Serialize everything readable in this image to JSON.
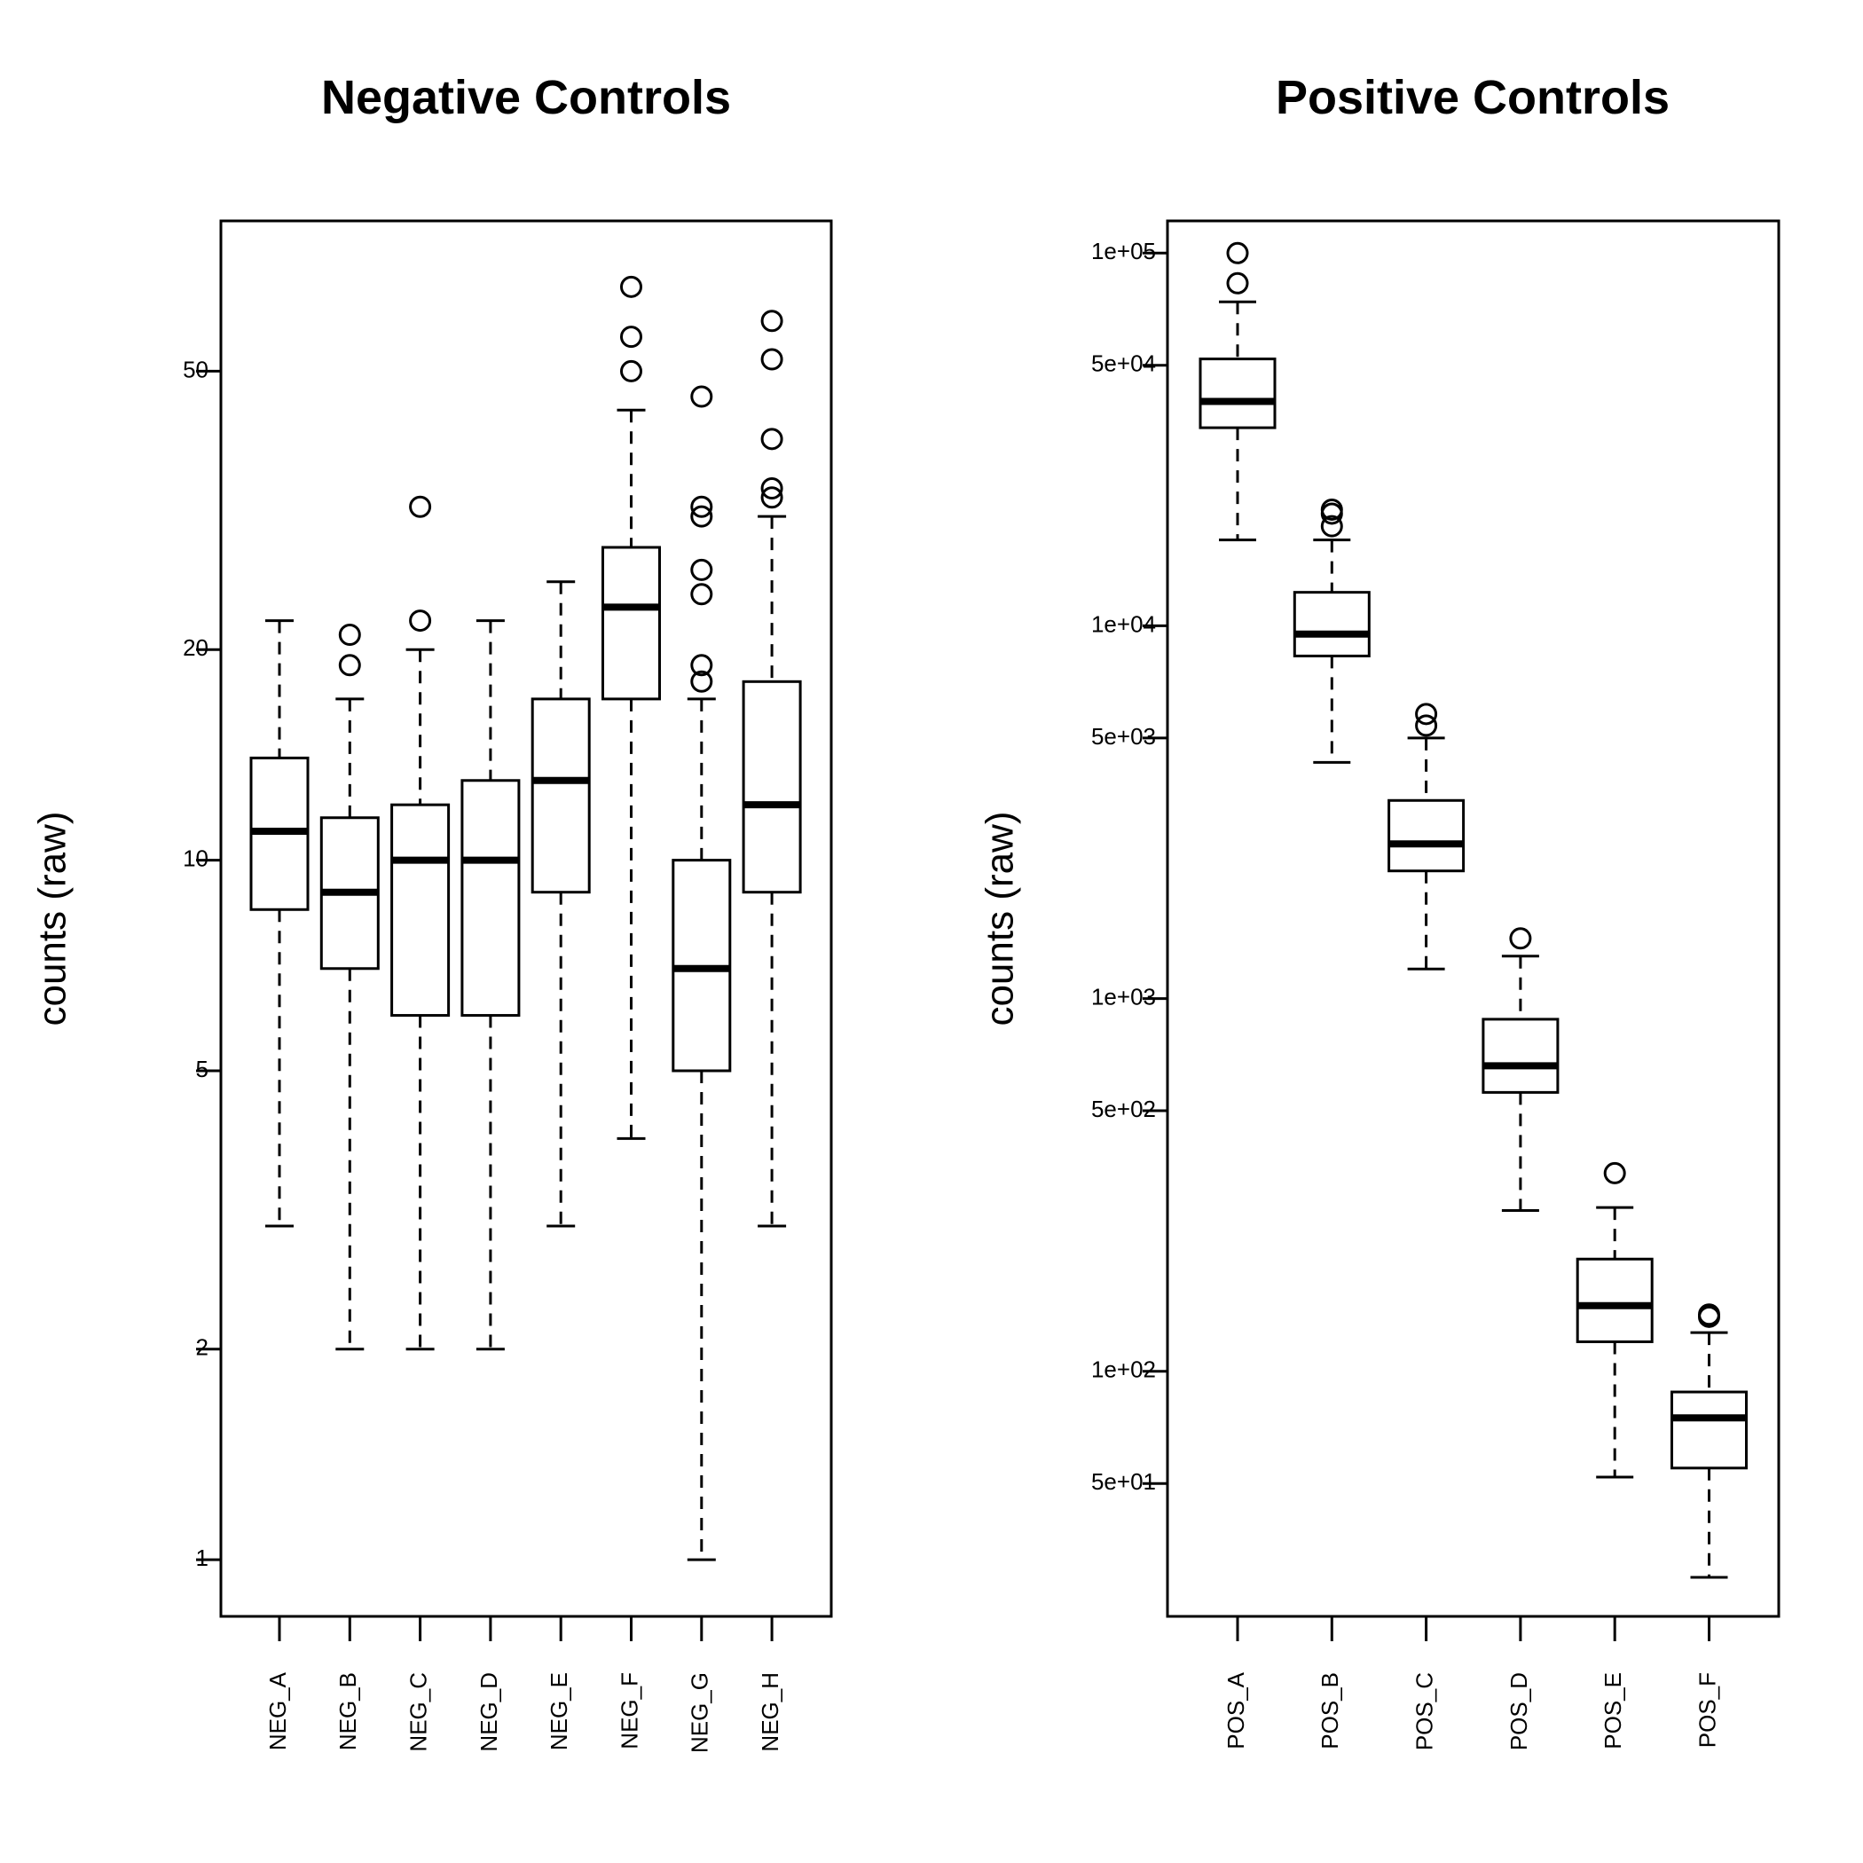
{
  "chart_data": [
    {
      "type": "boxplot",
      "title": "Negative Controls",
      "xlabel": "",
      "ylabel": "counts (raw)",
      "yscale": "log",
      "ylim": [
        0.83,
        82
      ],
      "yticks": [
        1,
        2,
        5,
        10,
        20,
        50
      ],
      "ytick_labels": [
        "1",
        "2",
        "5",
        "10",
        "20",
        "50"
      ],
      "grid": false,
      "categories": [
        "NEG_A",
        "NEG_B",
        "NEG_C",
        "NEG_D",
        "NEG_E",
        "NEG_F",
        "NEG_G",
        "NEG_H"
      ],
      "boxes": [
        {
          "whisker_low": 3,
          "q1": 8.5,
          "median": 11,
          "q3": 14,
          "whisker_high": 22,
          "outliers": []
        },
        {
          "whisker_low": 2,
          "q1": 7,
          "median": 9,
          "q3": 11.5,
          "whisker_high": 17,
          "outliers": [
            19,
            21
          ]
        },
        {
          "whisker_low": 2,
          "q1": 6,
          "median": 10,
          "q3": 12,
          "whisker_high": 20,
          "outliers": [
            22,
            32
          ]
        },
        {
          "whisker_low": 2,
          "q1": 6,
          "median": 10,
          "q3": 13,
          "whisker_high": 22,
          "outliers": []
        },
        {
          "whisker_low": 3,
          "q1": 9,
          "median": 13,
          "q3": 17,
          "whisker_high": 25,
          "outliers": []
        },
        {
          "whisker_low": 4,
          "q1": 17,
          "median": 23,
          "q3": 28,
          "whisker_high": 44,
          "outliers": [
            50,
            56,
            66
          ]
        },
        {
          "whisker_low": 1,
          "q1": 5,
          "median": 7,
          "q3": 10,
          "whisker_high": 17,
          "outliers": [
            18,
            19,
            24,
            26,
            31,
            32,
            46
          ]
        },
        {
          "whisker_low": 3,
          "q1": 9,
          "median": 12,
          "q3": 18,
          "whisker_high": 31,
          "outliers": [
            33,
            34,
            40,
            52,
            59
          ]
        }
      ]
    },
    {
      "type": "boxplot",
      "title": "Positive Controls",
      "xlabel": "",
      "ylabel": "counts (raw)",
      "yscale": "log",
      "ylim": [
        22,
        122000
      ],
      "yticks": [
        50,
        100,
        500,
        1000,
        5000,
        10000,
        50000,
        100000
      ],
      "ytick_labels": [
        "5e+01",
        "1e+02",
        "5e+02",
        "1e+03",
        "5e+03",
        "1e+04",
        "5e+04",
        "1e+05"
      ],
      "grid": false,
      "categories": [
        "POS_A",
        "POS_B",
        "POS_C",
        "POS_D",
        "POS_E",
        "POS_F"
      ],
      "boxes": [
        {
          "whisker_low": 17000,
          "q1": 34000,
          "median": 40000,
          "q3": 52000,
          "whisker_high": 74000,
          "outliers": [
            83000,
            100000
          ]
        },
        {
          "whisker_low": 4300,
          "q1": 8300,
          "median": 9500,
          "q3": 12300,
          "whisker_high": 17000,
          "outliers": [
            18500,
            20000,
            20500
          ]
        },
        {
          "whisker_low": 1200,
          "q1": 2200,
          "median": 2600,
          "q3": 3400,
          "whisker_high": 5000,
          "outliers": [
            5400,
            5800
          ]
        },
        {
          "whisker_low": 270,
          "q1": 560,
          "median": 660,
          "q3": 880,
          "whisker_high": 1300,
          "outliers": [
            1450
          ]
        },
        {
          "whisker_low": 52,
          "q1": 120,
          "median": 150,
          "q3": 200,
          "whisker_high": 275,
          "outliers": [
            340
          ]
        },
        {
          "whisker_low": 28,
          "q1": 55,
          "median": 75,
          "q3": 88,
          "whisker_high": 127,
          "outliers": [
            140,
            142
          ]
        }
      ]
    }
  ]
}
